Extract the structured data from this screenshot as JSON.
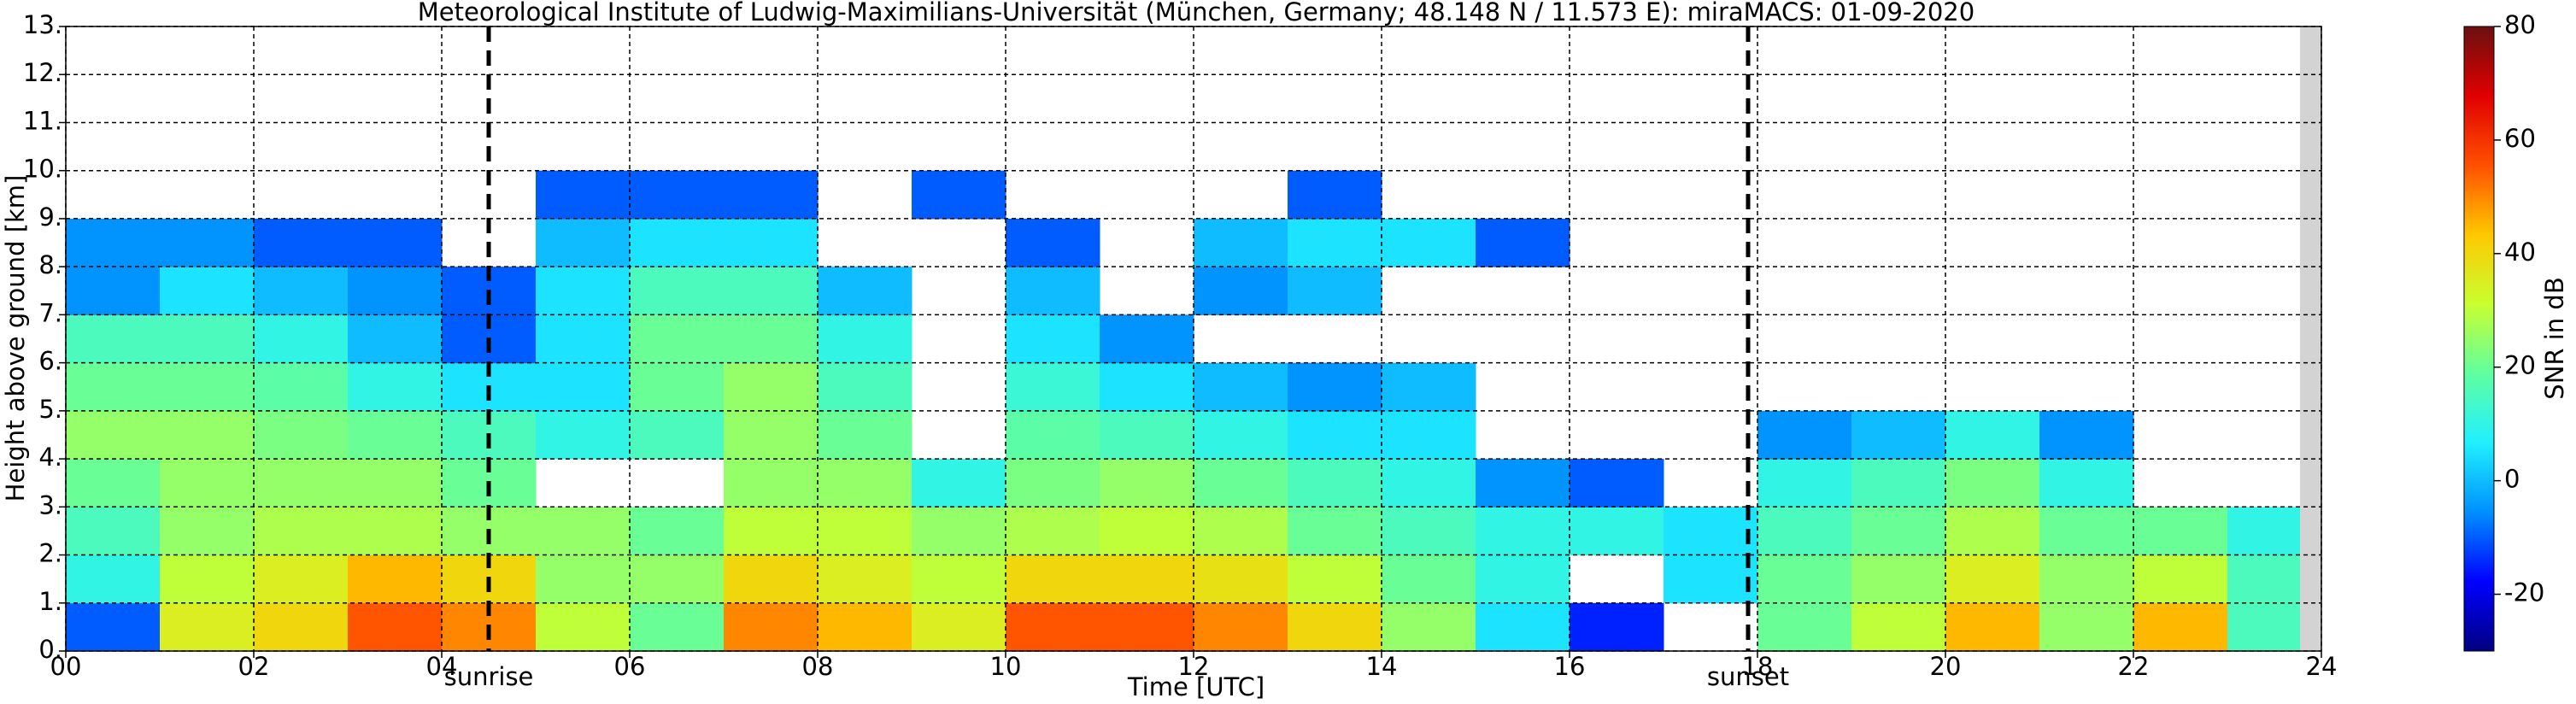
{
  "chart_data": {
    "type": "heatmap",
    "title": "Meteorological Institute of Ludwig-Maximilians-Universität (München, Germany; 48.148 N / 11.573 E):    miraMACS: 01-09-2020",
    "x_label": "Time [UTC]",
    "y_label": "Height above ground [km]",
    "xlim": [
      0,
      24
    ],
    "ylim": [
      0,
      13
    ],
    "xticks": [
      {
        "value": 0,
        "label": "00"
      },
      {
        "value": 2,
        "label": "02"
      },
      {
        "value": 4,
        "label": "04"
      },
      {
        "value": 6,
        "label": "06"
      },
      {
        "value": 8,
        "label": "08"
      },
      {
        "value": 10,
        "label": "10"
      },
      {
        "value": 12,
        "label": "12"
      },
      {
        "value": 14,
        "label": "14"
      },
      {
        "value": 16,
        "label": "16"
      },
      {
        "value": 18,
        "label": "18"
      },
      {
        "value": 20,
        "label": "20"
      },
      {
        "value": 22,
        "label": "22"
      },
      {
        "value": 24,
        "label": "24"
      }
    ],
    "yticks": [
      {
        "value": 0,
        "label": "0."
      },
      {
        "value": 1,
        "label": "1."
      },
      {
        "value": 2,
        "label": "2."
      },
      {
        "value": 3,
        "label": "3."
      },
      {
        "value": 4,
        "label": "4."
      },
      {
        "value": 5,
        "label": "5."
      },
      {
        "value": 6,
        "label": "6."
      },
      {
        "value": 7,
        "label": "7."
      },
      {
        "value": 8,
        "label": "8."
      },
      {
        "value": 9,
        "label": "9."
      },
      {
        "value": 10,
        "label": "10."
      },
      {
        "value": 11,
        "label": "11."
      },
      {
        "value": 12,
        "label": "12."
      },
      {
        "value": 13,
        "label": "13."
      }
    ],
    "grid": true,
    "z_cell_height": 1,
    "z": [
      [
        -10,
        10,
        15,
        20,
        25,
        20,
        15,
        -5,
        -5,
        null
      ],
      [
        35,
        30,
        25,
        25,
        25,
        20,
        15,
        5,
        -5,
        null
      ],
      [
        40,
        35,
        28,
        25,
        22,
        18,
        10,
        0,
        -10,
        null
      ],
      [
        55,
        45,
        28,
        25,
        20,
        10,
        0,
        -5,
        -10,
        null
      ],
      [
        50,
        40,
        25,
        20,
        15,
        5,
        -10,
        -10,
        null,
        null
      ],
      [
        30,
        25,
        25,
        null,
        10,
        5,
        5,
        5,
        0,
        -10
      ],
      [
        20,
        25,
        20,
        null,
        15,
        20,
        20,
        15,
        5,
        -10
      ],
      [
        50,
        40,
        30,
        25,
        25,
        25,
        20,
        15,
        5,
        -10
      ],
      [
        45,
        35,
        30,
        25,
        20,
        15,
        10,
        0,
        null,
        null
      ],
      [
        35,
        30,
        25,
        10,
        null,
        null,
        null,
        null,
        null,
        -10
      ],
      [
        55,
        40,
        28,
        22,
        18,
        12,
        5,
        0,
        -10,
        null
      ],
      [
        55,
        40,
        30,
        25,
        15,
        5,
        -5,
        null,
        null,
        null
      ],
      [
        50,
        38,
        28,
        20,
        10,
        0,
        null,
        -5,
        0,
        null
      ],
      [
        40,
        30,
        20,
        15,
        5,
        -5,
        null,
        0,
        5,
        -10
      ],
      [
        25,
        20,
        15,
        10,
        5,
        0,
        null,
        null,
        5,
        null
      ],
      [
        5,
        10,
        10,
        -5,
        null,
        null,
        null,
        null,
        -10,
        null
      ],
      [
        -15,
        null,
        10,
        -10,
        null,
        null,
        null,
        null,
        null,
        null
      ],
      [
        null,
        5,
        5,
        null,
        null,
        null,
        null,
        null,
        null,
        null
      ],
      [
        20,
        20,
        15,
        10,
        -5,
        null,
        null,
        null,
        null,
        null
      ],
      [
        30,
        25,
        20,
        15,
        0,
        null,
        null,
        null,
        null,
        null
      ],
      [
        45,
        35,
        28,
        22,
        10,
        null,
        null,
        null,
        null,
        null
      ],
      [
        25,
        25,
        20,
        10,
        -5,
        null,
        null,
        null,
        null,
        null
      ],
      [
        45,
        30,
        20,
        null,
        null,
        null,
        null,
        null,
        null,
        null
      ],
      [
        15,
        15,
        10,
        null,
        null,
        null,
        null,
        null,
        null,
        null
      ]
    ],
    "events": [
      {
        "x": 4.5,
        "label": "sunrise"
      },
      {
        "x": 17.9,
        "label": "sunset"
      }
    ],
    "colorbar": {
      "label": "SNR in dB",
      "lim": [
        -30,
        80
      ],
      "ticks": [
        -20,
        0,
        20,
        40,
        60,
        80
      ]
    },
    "colormap": [
      "#000080",
      "#0000ff",
      "#0090ff",
      "#20f0ff",
      "#60ffa0",
      "#c8ff30",
      "#ffc800",
      "#ff5000",
      "#e00000",
      "#6a1010"
    ]
  }
}
